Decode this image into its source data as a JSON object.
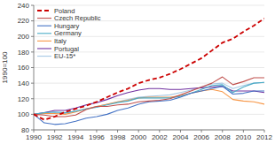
{
  "chart_data": {
    "type": "line",
    "ylabel": "1990=100",
    "x": [
      1990,
      1991,
      1992,
      1993,
      1994,
      1995,
      1996,
      1997,
      1998,
      1999,
      2000,
      2001,
      2002,
      2003,
      2004,
      2005,
      2006,
      2007,
      2008,
      2009,
      2010,
      2011,
      2012
    ],
    "xlim": [
      1990,
      2012
    ],
    "xticks": [
      1990,
      1992,
      1994,
      1996,
      1998,
      2000,
      2002,
      2004,
      2006,
      2008,
      2010,
      2012
    ],
    "ylim": [
      80,
      240
    ],
    "yticks": [
      80,
      100,
      120,
      140,
      160,
      180,
      200,
      220,
      240
    ],
    "grid": "y",
    "legend": "upper left",
    "series": [
      {
        "name": "Poland",
        "color": "#cc0000",
        "line_style": "dashed",
        "values": [
          100,
          93,
          97,
          103,
          107,
          111,
          116,
          122,
          128,
          133,
          140,
          144,
          147,
          152,
          158,
          165,
          172,
          182,
          192,
          197,
          206,
          214,
          223
        ]
      },
      {
        "name": "Czech Republic",
        "color": "#c0504d",
        "line_style": "solid",
        "values": [
          100,
          99,
          97,
          97,
          99,
          106,
          110,
          110,
          112,
          113,
          116,
          117,
          118,
          120,
          125,
          130,
          135,
          140,
          148,
          138,
          142,
          147,
          147
        ]
      },
      {
        "name": "Hungary",
        "color": "#4472c4",
        "line_style": "solid",
        "values": [
          100,
          89,
          87,
          88,
          91,
          95,
          97,
          100,
          105,
          108,
          113,
          116,
          117,
          118,
          122,
          127,
          130,
          133,
          136,
          126,
          127,
          130,
          130
        ]
      },
      {
        "name": "Germany",
        "color": "#4bacc6",
        "line_style": "solid",
        "values": [
          100,
          102,
          103,
          102,
          104,
          107,
          109,
          112,
          115,
          117,
          121,
          121,
          121,
          121,
          123,
          127,
          132,
          137,
          138,
          128,
          135,
          140,
          141
        ]
      },
      {
        "name": "Italy",
        "color": "#f79646",
        "line_style": "solid",
        "values": [
          100,
          101,
          101,
          100,
          103,
          107,
          110,
          113,
          116,
          118,
          121,
          122,
          122,
          122,
          124,
          127,
          130,
          132,
          129,
          119,
          117,
          116,
          113
        ]
      },
      {
        "name": "Portugal",
        "color": "#7030a0",
        "line_style": "solid",
        "values": [
          100,
          102,
          105,
          105,
          108,
          112,
          115,
          119,
          124,
          128,
          131,
          133,
          133,
          132,
          132,
          133,
          134,
          135,
          136,
          130,
          130,
          130,
          128
        ]
      },
      {
        "name": "EU-15*",
        "color": "#a5c8e4",
        "line_style": "solid",
        "values": [
          100,
          101,
          102,
          101,
          104,
          107,
          110,
          113,
          116,
          119,
          122,
          123,
          124,
          125,
          128,
          131,
          135,
          139,
          140,
          133,
          137,
          140,
          141
        ]
      }
    ]
  }
}
